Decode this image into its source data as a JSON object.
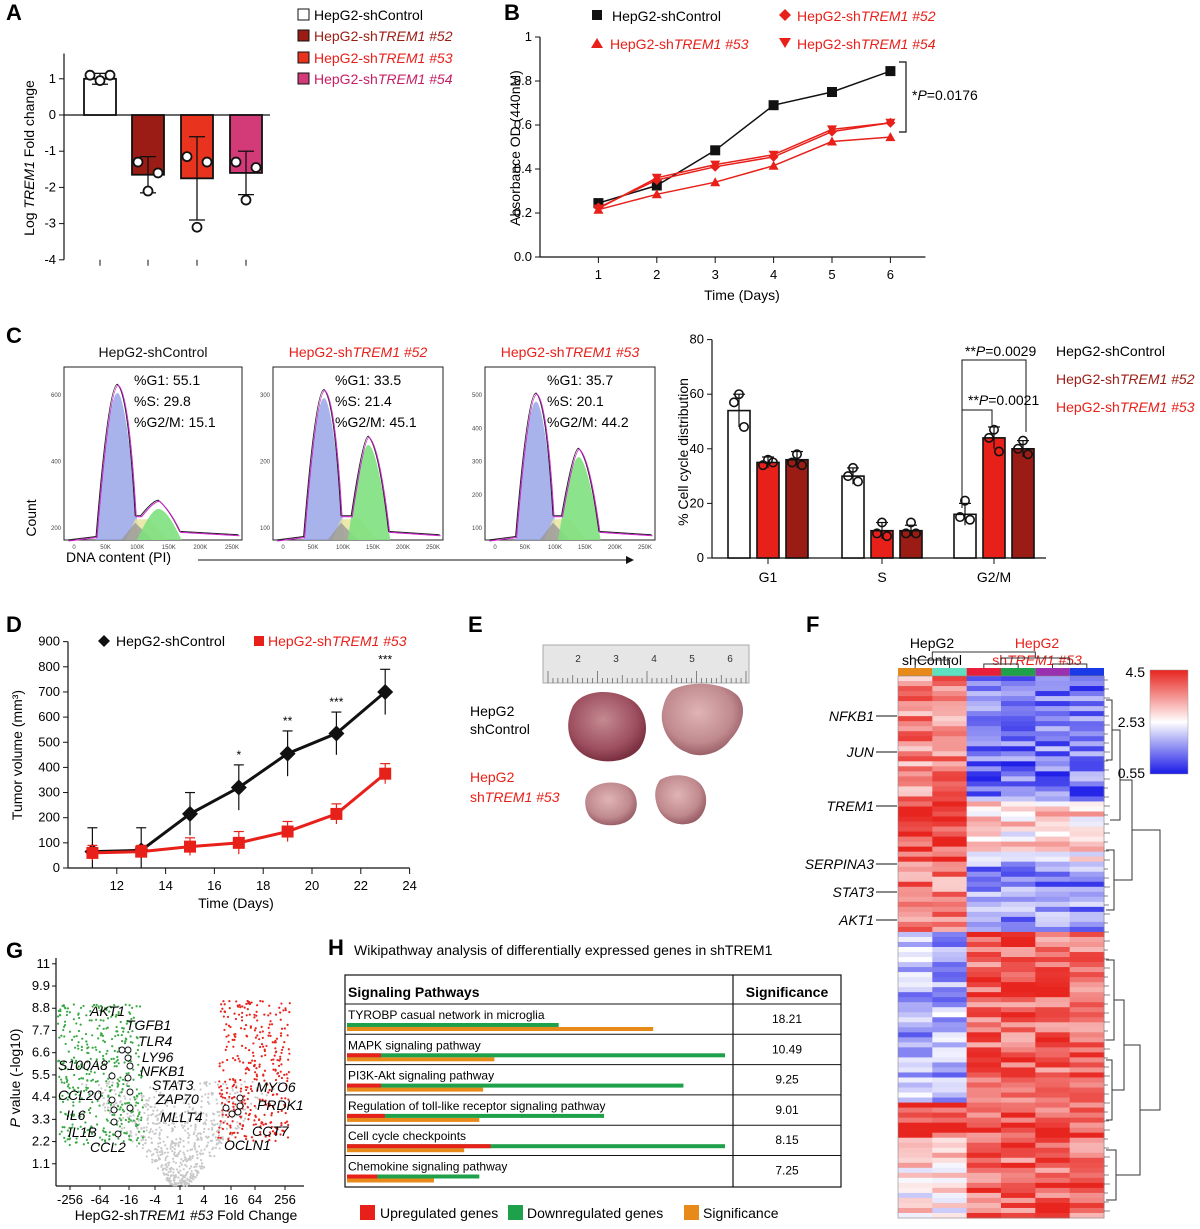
{
  "colors": {
    "control": "#ffffff",
    "sh52": "#9b1c14",
    "sh53": "#e8331f",
    "sh54": "#d23a78",
    "red_line": "#e8201a",
    "histo_g1": "#9aa6e8",
    "histo_s": "#e8e4a0",
    "histo_g2": "#7ee07e",
    "heat_high": "#e8241e",
    "heat_mid": "#ffffff",
    "heat_low": "#1a1ae8",
    "up": "#e8201a",
    "down": "#1fa04a",
    "sig": "#e88a1a"
  },
  "panels": {
    "A": {
      "letter": "A",
      "ylabel_pre": "Log ",
      "ylabel_it": "TREM1",
      "ylabel_post": " Fold change",
      "legend": [
        {
          "pre": "HepG2-shControl",
          "it": "",
          "color": "control"
        },
        {
          "pre": "HepG2-sh",
          "it": "TREM1 #52",
          "color": "sh52"
        },
        {
          "pre": "HepG2-sh",
          "it": "TREM1 #53",
          "color": "sh53"
        },
        {
          "pre": "HepG2-sh",
          "it": "TREM1 #54",
          "color": "sh54"
        }
      ]
    },
    "B": {
      "letter": "B",
      "legend": [
        {
          "pre": "HepG2-shControl",
          "it": ""
        },
        {
          "pre": "HepG2-sh",
          "it": "TREM1 #52"
        },
        {
          "pre": "HepG2-sh",
          "it": "TREM1 #53"
        },
        {
          "pre": "HepG2-sh",
          "it": "TREM1 #54"
        }
      ],
      "annotation_pre": "*",
      "annotation_it": "P",
      "annotation_post": "=0.0176"
    },
    "C": {
      "letter": "C",
      "histograms": [
        {
          "title_pre": "HepG2-shControl",
          "title_it": "",
          "red": false,
          "g1": "%G1: 55.1",
          "s": "%S: 29.8",
          "g2": "%G2/M: 15.1",
          "yticks": [
            "600",
            "400",
            "200"
          ],
          "xticks": [
            "0",
            "50K",
            "100K",
            "150K",
            "200K",
            "250K"
          ]
        },
        {
          "title_pre": "HepG2-sh",
          "title_it": "TREM1 #52",
          "red": true,
          "g1": "%G1: 33.5",
          "s": "%S: 21.4",
          "g2": "%G2/M: 45.1",
          "yticks": [
            "300",
            "200",
            "100"
          ],
          "xticks": [
            "0",
            "50K",
            "100K",
            "150K",
            "200K",
            "250K"
          ]
        },
        {
          "title_pre": "HepG2-sh",
          "title_it": "TREM1 #53",
          "red": true,
          "g1": "%G1: 35.7",
          "s": "%S: 20.1",
          "g2": "%G2/M: 44.2",
          "yticks": [
            "500",
            "400",
            "300",
            "200",
            "100"
          ],
          "xticks": [
            "0",
            "50K",
            "100K",
            "150K",
            "200K",
            "250K"
          ]
        }
      ],
      "count_label": "Count",
      "dna_label": "DNA content (PI)",
      "bar_legend": [
        {
          "pre": "HepG2-shControl",
          "it": "",
          "color": "#111111"
        },
        {
          "pre": "HepG2-sh",
          "it": "TREM1 #52",
          "color": "#9b1c14"
        },
        {
          "pre": "HepG2-sh",
          "it": "TREM1 #53",
          "color": "#e8201a"
        }
      ],
      "sig1_pre": "**",
      "sig1_it": "P",
      "sig1_post": "=0.0029",
      "sig2_pre": "**",
      "sig2_it": "P",
      "sig2_post": "=0.0021"
    },
    "D": {
      "letter": "D",
      "legend": [
        {
          "pre": "HepG2-shControl",
          "it": ""
        },
        {
          "pre": "HepG2-sh",
          "it": "TREM1 #53"
        }
      ],
      "ylabel": "Tumor volume (mm³)",
      "xlabel": "Time (Days)",
      "stars": [
        "*",
        "**",
        "***",
        "***"
      ]
    },
    "E": {
      "letter": "E",
      "ruler_marks": [
        "2",
        "3",
        "4",
        "5",
        "6"
      ],
      "label1": [
        "HepG2",
        "shControl"
      ],
      "label2_a": "HepG2",
      "label2_pre": "sh",
      "label2_it": "TREM1 #53"
    },
    "F": {
      "letter": "F",
      "group1": [
        "HepG2",
        "shControl"
      ],
      "group2_a": "HepG2",
      "group2_pre": "sh",
      "group2_it": "TREM1 #53",
      "scale": [
        "4.5",
        "2.53",
        "0.55"
      ],
      "genes": [
        "NFKB1",
        "JUN",
        "TREM1",
        "SERPINA3",
        "STAT3",
        "AKT1"
      ]
    },
    "G": {
      "letter": "G",
      "ylabel_it": "P",
      "ylabel_post": " value (-log10)",
      "xlabel_pre": "HepG2-sh",
      "xlabel_it": "TREM1 #53",
      "xlabel_post": " Fold Change",
      "yticks": [
        "11",
        "9.9",
        "8.8",
        "7.7",
        "6.6",
        "5.5",
        "4.4",
        "3.3",
        "2.2",
        "1.1"
      ],
      "xticks": [
        "-256",
        "-64",
        "-16",
        "-4",
        "1",
        "4",
        "16",
        "64",
        "256"
      ],
      "genes_left": [
        "AKT1",
        "TGFB1",
        "TLR4",
        "LY96",
        "S100A8",
        "NFKB1",
        "STAT3",
        "ZAP70",
        "CCL20",
        "IL6",
        "IL1B",
        "CCL2"
      ],
      "genes_right": [
        "MYO6",
        "PRDK1",
        "MLLT4",
        "CCT7",
        "OCLN1"
      ]
    },
    "H": {
      "letter": "H",
      "title": "Wikipathway analysis of differentially expressed genes in shTREM1",
      "col1": "Signaling Pathways",
      "col2": "Significance",
      "legend": [
        "Upregulated genes",
        "Downregulated genes",
        "Significance"
      ]
    }
  },
  "chart_data": [
    {
      "id": "A",
      "type": "bar",
      "categories": [
        "HepG2-shControl",
        "HepG2-shTREM1 #52",
        "HepG2-shTREM1 #53",
        "HepG2-shTREM1 #54"
      ],
      "values": [
        1.0,
        -1.65,
        -1.75,
        -1.6
      ],
      "errors": [
        0.15,
        0.5,
        1.15,
        0.6
      ],
      "points": [
        [
          1.1,
          1.1,
          0.95
        ],
        [
          -1.3,
          -1.6,
          -2.1
        ],
        [
          -1.15,
          -1.3,
          -3.1
        ],
        [
          -1.3,
          -1.45,
          -2.35
        ]
      ],
      "ylim": [
        -4,
        2
      ],
      "yticks": [
        -4,
        -3,
        -2,
        -1,
        0,
        1
      ]
    },
    {
      "id": "B",
      "type": "line",
      "xlabel": "Time (Days)",
      "ylabel": "Absorbance OD (440nM)",
      "x": [
        1,
        2,
        3,
        4,
        5,
        6
      ],
      "xlim": [
        0,
        7
      ],
      "ylim": [
        0,
        1
      ],
      "yticks": [
        0.0,
        0.2,
        0.4,
        0.6,
        0.8,
        1
      ],
      "series": [
        {
          "name": "HepG2-shControl",
          "values": [
            0.245,
            0.325,
            0.485,
            0.69,
            0.75,
            0.845
          ]
        },
        {
          "name": "HepG2-shTREM1 #52",
          "values": [
            0.225,
            0.35,
            0.41,
            0.455,
            0.57,
            0.61
          ]
        },
        {
          "name": "HepG2-shTREM1 #53",
          "values": [
            0.215,
            0.285,
            0.34,
            0.415,
            0.525,
            0.545
          ]
        },
        {
          "name": "HepG2-shTREM1 #54",
          "values": [
            0.22,
            0.36,
            0.42,
            0.465,
            0.58,
            0.61
          ]
        }
      ]
    },
    {
      "id": "C",
      "type": "bar",
      "ylabel": "% Cell cycle distribution",
      "categories": [
        "G1",
        "S",
        "G2/M"
      ],
      "ylim": [
        0,
        80
      ],
      "yticks": [
        0,
        20,
        40,
        60,
        80
      ],
      "series": [
        {
          "name": "HepG2-shControl",
          "values": [
            54,
            30,
            16
          ],
          "errors": [
            6,
            3,
            4
          ],
          "points": [
            [
              60,
              57,
              48
            ],
            [
              33,
              30,
              28
            ],
            [
              21,
              15,
              14
            ]
          ]
        },
        {
          "name": "HepG2-shTREM1 #53",
          "values": [
            35,
            10,
            44
          ],
          "errors": [
            2,
            3,
            4
          ],
          "points": [
            [
              36,
              34,
              35
            ],
            [
              13,
              9,
              8
            ],
            [
              47,
              44,
              39
            ]
          ]
        },
        {
          "name": "HepG2-shTREM1 #52",
          "values": [
            36,
            10,
            40
          ],
          "errors": [
            3,
            2,
            3
          ],
          "points": [
            [
              38,
              35,
              34
            ],
            [
              13,
              9,
              9
            ],
            [
              43,
              40,
              38
            ]
          ]
        }
      ]
    },
    {
      "id": "D",
      "type": "line",
      "xlabel": "Time (Days)",
      "ylabel": "Tumor volume (mm³)",
      "x": [
        11,
        13,
        15,
        17,
        19,
        21,
        23
      ],
      "xlim": [
        10,
        24
      ],
      "ylim": [
        0,
        900
      ],
      "xticks": [
        12,
        14,
        16,
        18,
        20,
        22,
        24
      ],
      "yticks": [
        0,
        100,
        200,
        300,
        400,
        500,
        600,
        700,
        800,
        900
      ],
      "series": [
        {
          "name": "HepG2-shControl",
          "values": [
            65,
            70,
            215,
            320,
            455,
            535,
            700
          ],
          "errors": [
            95,
            90,
            85,
            90,
            90,
            85,
            90
          ]
        },
        {
          "name": "HepG2-shTREM1 #53",
          "values": [
            60,
            65,
            85,
            100,
            145,
            215,
            375
          ],
          "errors": [
            30,
            25,
            35,
            45,
            40,
            40,
            40
          ]
        }
      ]
    },
    {
      "id": "H",
      "type": "table",
      "rows": [
        {
          "pathway": "TYROBP casual network in microglia",
          "significance": "18.21",
          "up": 0,
          "down": 0.56,
          "sig": 0.81
        },
        {
          "pathway": "MAPK signaling pathway",
          "significance": "10.49",
          "up": 0.09,
          "down": 1.0,
          "sig": 0.39
        },
        {
          "pathway": "PI3K-Akt signaling pathway",
          "significance": "9.25",
          "up": 0.09,
          "down": 0.89,
          "sig": 0.36
        },
        {
          "pathway": "Regulation of toll-like receptor signaling pathway",
          "significance": "9.01",
          "up": 0.1,
          "down": 0.68,
          "sig": 0.35
        },
        {
          "pathway": "Cell cycle checkpoints",
          "significance": "8.15",
          "up": 0.38,
          "down": 1.0,
          "sig": 0.31
        },
        {
          "pathway": "Chemokine signaling pathway",
          "significance": "7.25",
          "up": 0.08,
          "down": 0.35,
          "sig": 0.23
        }
      ]
    }
  ]
}
